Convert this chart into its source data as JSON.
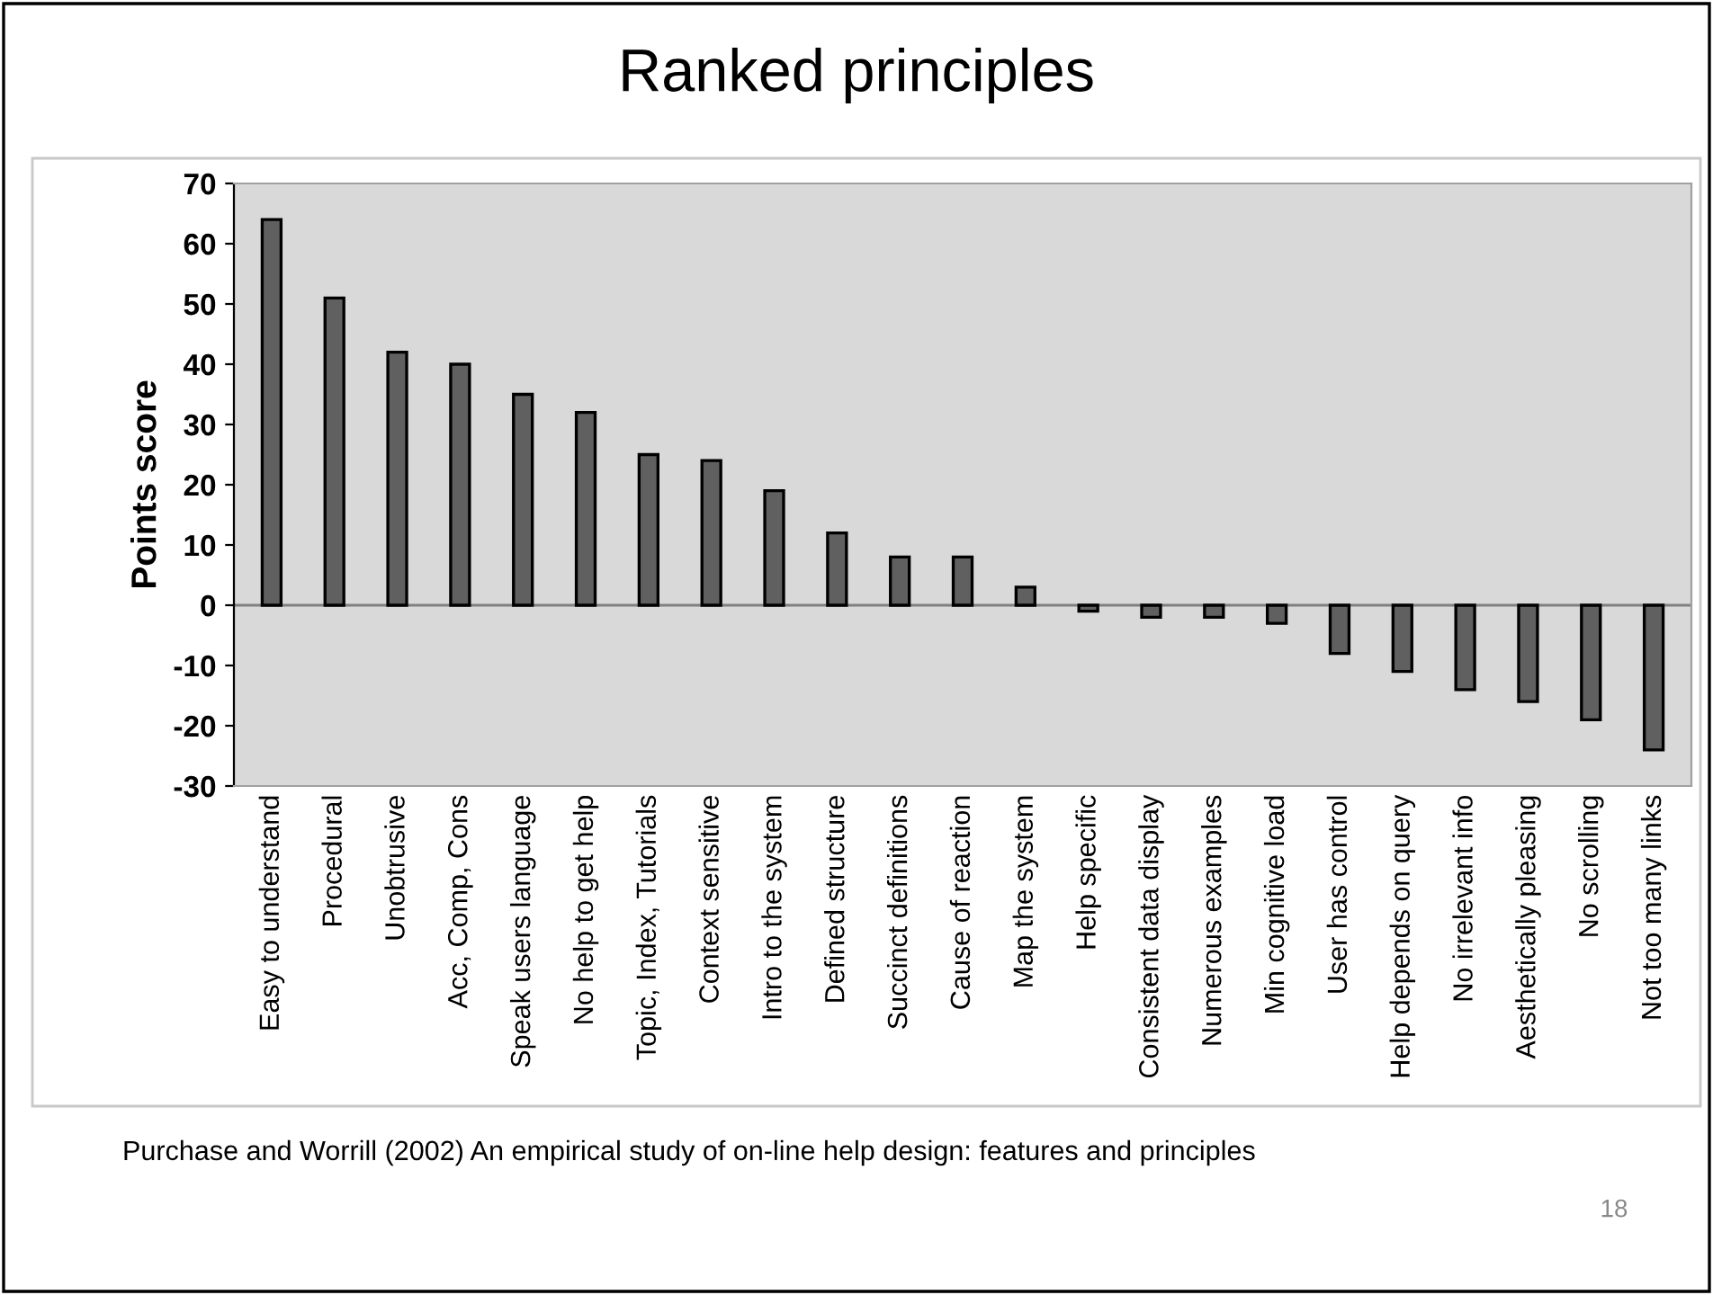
{
  "chart_data": {
    "type": "bar",
    "title": "Ranked principles",
    "ylabel": "Points score",
    "categories": [
      "Easy to understand",
      "Procedural",
      "Unobtrusive",
      "Acc, Comp, Cons",
      "Speak users language",
      "No help to get help",
      "Topic, Index, Tutorials",
      "Context sensitive",
      "Intro to the system",
      "Defined structure",
      "Succinct definitions",
      "Cause of reaction",
      "Map the system",
      "Help specific",
      "Consistent data display",
      "Numerous examples",
      "Min cognitive load",
      "User has control",
      "Help depends on query",
      "No irrelevant info",
      "Aesthetically pleasing",
      "No scrolling",
      "Not too many links"
    ],
    "values": [
      64,
      51,
      42,
      40,
      35,
      32,
      25,
      24,
      19,
      12,
      8,
      8,
      3,
      -1,
      -2,
      -2,
      -3,
      -8,
      -11,
      -14,
      -16,
      -19,
      -24
    ],
    "color": "#606060",
    "ylim": [
      -30,
      70
    ],
    "yticks": [
      -30,
      -20,
      -10,
      0,
      10,
      20,
      30,
      40,
      50,
      60,
      70
    ],
    "ref_lines": [
      {
        "axis": "y",
        "value": 0,
        "color": "#808080"
      }
    ],
    "annotations": [
      "Purchase and Worrill (2002) An empirical study of on-line help design: features and principles",
      "18"
    ]
  }
}
